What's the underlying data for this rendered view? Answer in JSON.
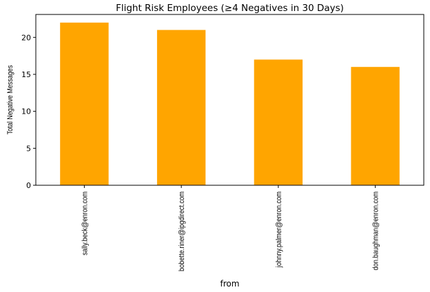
{
  "chart_data": {
    "type": "bar",
    "title": "Flight Risk Employees (≥4 Negatives in 30 Days)",
    "xlabel": "from",
    "ylabel": "Total Negative Messages",
    "categories": [
      "sally.beck@enron.com",
      "bobette.riner@ipgdirect.com",
      "johnny.palmer@enron.com",
      "don.baughman@enron.com"
    ],
    "values": [
      22,
      21,
      17,
      16
    ],
    "ylim": [
      0,
      23.1
    ],
    "yticks": [
      0,
      5,
      10,
      15,
      20
    ],
    "bar_color": "#FFA500",
    "grid": false,
    "legend": "none"
  }
}
